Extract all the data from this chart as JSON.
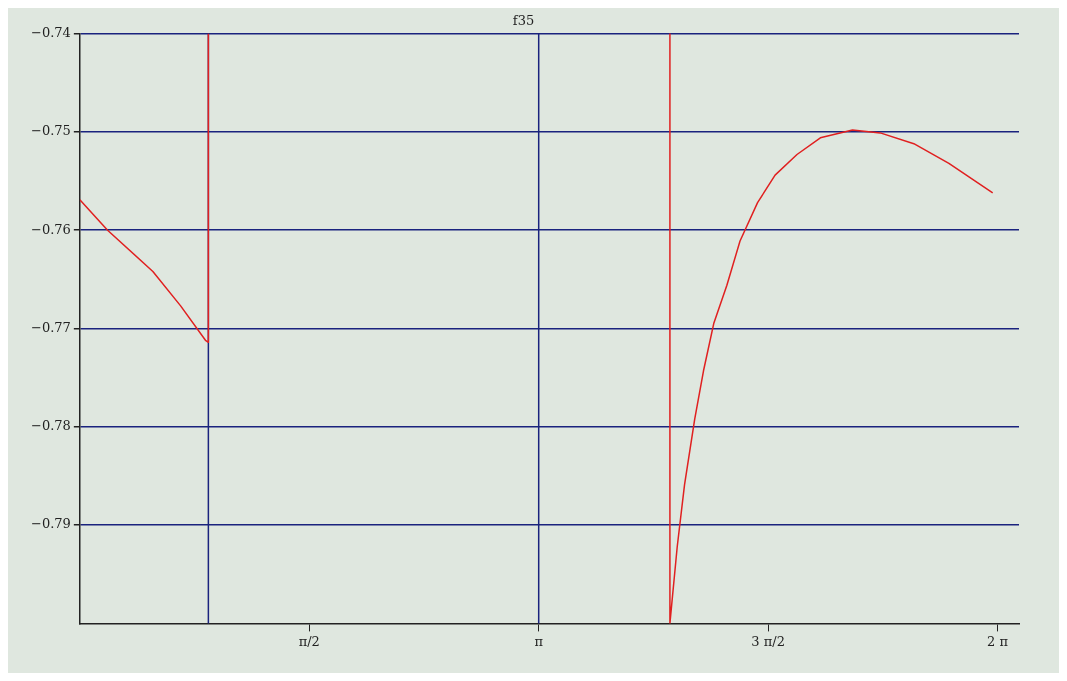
{
  "chart_data": {
    "type": "line",
    "title": "f35",
    "x": [
      0,
      0.19,
      0.5,
      0.69,
      0.86,
      0.88,
      0.88,
      2.5,
      4.04,
      4.04,
      4.09,
      4.14,
      4.21,
      4.27,
      4.34,
      4.43,
      4.52,
      4.64,
      4.76,
      4.91,
      5.07,
      5.29,
      5.48,
      5.71,
      5.95,
      6.25
    ],
    "series": [
      {
        "color": "#e02020",
        "values": [
          -0.7569,
          -0.76,
          -0.7642,
          -0.7677,
          -0.7712,
          -0.7714,
          -0.74,
          null,
          -0.74,
          -0.8,
          -0.7922,
          -0.7859,
          -0.7792,
          -0.7743,
          -0.7695,
          -0.7656,
          -0.7611,
          -0.7572,
          -0.7544,
          -0.7523,
          -0.7506,
          -0.7498,
          -0.7501,
          -0.7512,
          -0.7532,
          -0.7562
        ]
      }
    ],
    "xlim": [
      0,
      6.43
    ],
    "xticks": [
      {
        "value": 1.5708,
        "label": "π/2"
      },
      {
        "value": 3.1416,
        "label": "π"
      },
      {
        "value": 4.7124,
        "label": "3 π/2"
      },
      {
        "value": 6.2832,
        "label": "2 π"
      }
    ],
    "ylim": [
      -0.8,
      -0.74
    ],
    "yticks": [
      -0.74,
      -0.75,
      -0.76,
      -0.77,
      -0.78,
      -0.79
    ],
    "grid": "y",
    "ref_lines": [
      {
        "axis": "x",
        "value": 0.88,
        "color": "#1a237e"
      },
      {
        "axis": "x",
        "value": 3.1416,
        "color": "#1a237e"
      }
    ],
    "legend": false,
    "marker": "none",
    "line_style": "solid"
  }
}
